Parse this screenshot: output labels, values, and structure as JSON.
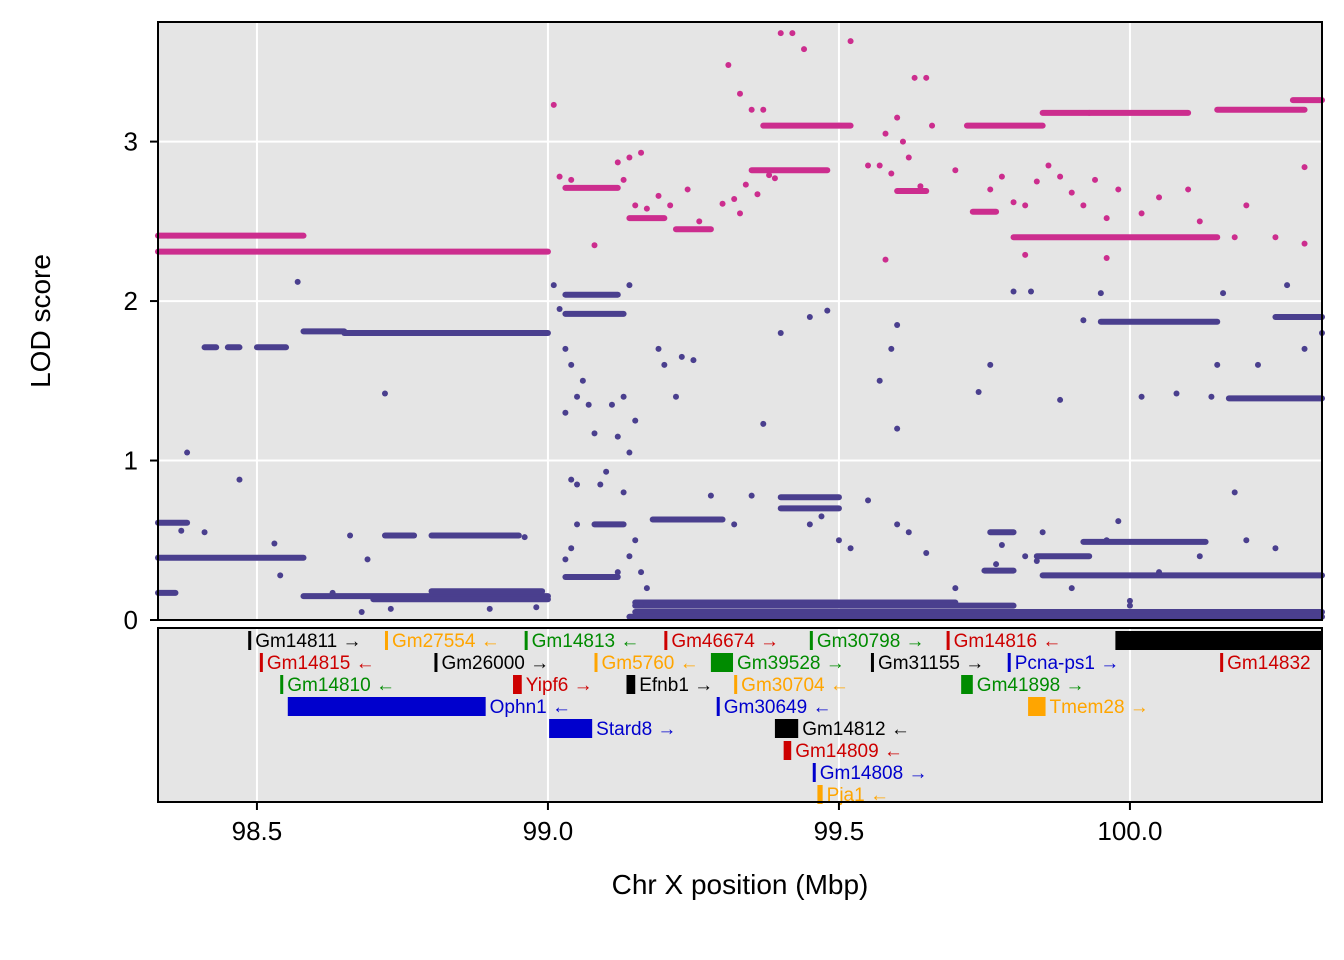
{
  "colors": {
    "panel_bg": "#E5E5E5",
    "grid": "#FFFFFF",
    "series_a": "#CC2D8E",
    "series_b": "#4A3F8E",
    "gene_black": "#000000",
    "gene_orange": "#FFA500",
    "gene_green": "#008B00",
    "gene_red": "#CD0000",
    "gene_blue": "#0000CD"
  },
  "chart_data": {
    "type": "scatter",
    "xlabel": "Chr X position (Mbp)",
    "ylabel": "LOD score",
    "xlim": [
      98.33,
      100.33
    ],
    "ylim": [
      0,
      3.75
    ],
    "x_ticks": [
      98.5,
      99.0,
      99.5,
      100.0
    ],
    "x_tick_labels": [
      "98.5",
      "99.0",
      "99.5",
      "100.0"
    ],
    "y_ticks": [
      0,
      1,
      2,
      3
    ],
    "y_tick_labels": [
      "0",
      "1",
      "2",
      "3"
    ],
    "grid": true,
    "series": [
      {
        "color": "#CC2D8E",
        "segments": [
          {
            "x0": 98.33,
            "x1": 98.58,
            "y": 2.41
          },
          {
            "x0": 98.33,
            "x1": 99.0,
            "y": 2.31
          },
          {
            "x0": 99.03,
            "x1": 99.12,
            "y": 2.71
          },
          {
            "x0": 99.14,
            "x1": 99.2,
            "y": 2.52
          },
          {
            "x0": 99.22,
            "x1": 99.28,
            "y": 2.45
          },
          {
            "x0": 99.35,
            "x1": 99.48,
            "y": 2.82
          },
          {
            "x0": 99.37,
            "x1": 99.52,
            "y": 3.1
          },
          {
            "x0": 99.6,
            "x1": 99.65,
            "y": 2.69
          },
          {
            "x0": 99.72,
            "x1": 99.85,
            "y": 3.1
          },
          {
            "x0": 99.85,
            "x1": 99.93,
            "y": 3.18
          },
          {
            "x0": 99.93,
            "x1": 100.1,
            "y": 3.18
          },
          {
            "x0": 100.15,
            "x1": 100.3,
            "y": 3.2
          },
          {
            "x0": 100.28,
            "x1": 100.33,
            "y": 3.26
          },
          {
            "x0": 99.8,
            "x1": 100.15,
            "y": 2.4
          },
          {
            "x0": 99.73,
            "x1": 99.77,
            "y": 2.56
          }
        ],
        "points": [
          [
            99.01,
            3.23
          ],
          [
            99.02,
            2.78
          ],
          [
            99.04,
            2.76
          ],
          [
            99.08,
            2.35
          ],
          [
            99.12,
            2.87
          ],
          [
            99.14,
            2.9
          ],
          [
            99.16,
            2.93
          ],
          [
            99.13,
            2.76
          ],
          [
            99.15,
            2.6
          ],
          [
            99.17,
            2.58
          ],
          [
            99.19,
            2.66
          ],
          [
            99.21,
            2.6
          ],
          [
            99.24,
            2.7
          ],
          [
            99.26,
            2.5
          ],
          [
            99.3,
            2.61
          ],
          [
            99.33,
            2.55
          ],
          [
            99.34,
            2.73
          ],
          [
            99.32,
            2.64
          ],
          [
            99.36,
            2.67
          ],
          [
            99.38,
            2.79
          ],
          [
            99.39,
            2.77
          ],
          [
            99.31,
            3.48
          ],
          [
            99.33,
            3.3
          ],
          [
            99.35,
            3.2
          ],
          [
            99.37,
            3.2
          ],
          [
            99.4,
            3.68
          ],
          [
            99.42,
            3.68
          ],
          [
            99.44,
            3.58
          ],
          [
            99.52,
            3.63
          ],
          [
            99.5,
            3.1
          ],
          [
            99.55,
            2.85
          ],
          [
            99.57,
            2.85
          ],
          [
            99.58,
            3.05
          ],
          [
            99.6,
            3.15
          ],
          [
            99.61,
            3.0
          ],
          [
            99.62,
            2.9
          ],
          [
            99.63,
            3.4
          ],
          [
            99.65,
            3.4
          ],
          [
            99.59,
            2.8
          ],
          [
            99.58,
            2.26
          ],
          [
            99.64,
            2.72
          ],
          [
            99.66,
            3.1
          ],
          [
            99.7,
            2.82
          ],
          [
            99.76,
            2.7
          ],
          [
            99.78,
            2.78
          ],
          [
            99.8,
            2.62
          ],
          [
            99.82,
            2.6
          ],
          [
            99.84,
            2.75
          ],
          [
            99.86,
            2.85
          ],
          [
            99.88,
            2.78
          ],
          [
            99.9,
            2.68
          ],
          [
            99.92,
            2.6
          ],
          [
            99.94,
            2.76
          ],
          [
            99.96,
            2.52
          ],
          [
            99.98,
            2.7
          ],
          [
            100.02,
            2.55
          ],
          [
            100.05,
            2.65
          ],
          [
            100.1,
            2.7
          ],
          [
            100.12,
            2.5
          ],
          [
            100.18,
            2.4
          ],
          [
            100.2,
            2.6
          ],
          [
            100.25,
            2.4
          ],
          [
            100.3,
            2.36
          ],
          [
            100.3,
            2.84
          ],
          [
            99.82,
            2.29
          ],
          [
            99.96,
            2.27
          ]
        ]
      },
      {
        "color": "#4A3F8E",
        "segments": [
          {
            "x0": 98.33,
            "x1": 98.38,
            "y": 0.61
          },
          {
            "x0": 98.33,
            "x1": 98.58,
            "y": 0.39
          },
          {
            "x0": 98.33,
            "x1": 98.36,
            "y": 0.17
          },
          {
            "x0": 98.58,
            "x1": 98.65,
            "y": 1.81
          },
          {
            "x0": 98.65,
            "x1": 99.0,
            "y": 1.8
          },
          {
            "x0": 98.41,
            "x1": 98.43,
            "y": 1.71
          },
          {
            "x0": 98.45,
            "x1": 98.47,
            "y": 1.71
          },
          {
            "x0": 98.5,
            "x1": 98.55,
            "y": 1.71
          },
          {
            "x0": 98.72,
            "x1": 98.77,
            "y": 0.53
          },
          {
            "x0": 98.8,
            "x1": 98.95,
            "y": 0.53
          },
          {
            "x0": 98.58,
            "x1": 99.0,
            "y": 0.15
          },
          {
            "x0": 98.7,
            "x1": 99.0,
            "y": 0.13
          },
          {
            "x0": 98.8,
            "x1": 98.99,
            "y": 0.18
          },
          {
            "x0": 99.03,
            "x1": 99.12,
            "y": 2.04
          },
          {
            "x0": 99.03,
            "x1": 99.13,
            "y": 1.92
          },
          {
            "x0": 99.03,
            "x1": 99.12,
            "y": 0.27
          },
          {
            "x0": 99.08,
            "x1": 99.13,
            "y": 0.6
          },
          {
            "x0": 99.18,
            "x1": 99.3,
            "y": 0.63
          },
          {
            "x0": 99.15,
            "x1": 99.7,
            "y": 0.11
          },
          {
            "x0": 99.15,
            "x1": 99.8,
            "y": 0.09
          },
          {
            "x0": 99.15,
            "x1": 100.33,
            "y": 0.05
          },
          {
            "x0": 99.14,
            "x1": 100.33,
            "y": 0.02
          },
          {
            "x0": 99.85,
            "x1": 100.33,
            "y": 0.28
          },
          {
            "x0": 99.92,
            "x1": 100.13,
            "y": 0.49
          },
          {
            "x0": 99.84,
            "x1": 99.93,
            "y": 0.4
          },
          {
            "x0": 99.95,
            "x1": 100.15,
            "y": 1.87
          },
          {
            "x0": 100.17,
            "x1": 100.33,
            "y": 1.39
          },
          {
            "x0": 100.25,
            "x1": 100.33,
            "y": 1.9
          },
          {
            "x0": 99.4,
            "x1": 99.5,
            "y": 0.77
          },
          {
            "x0": 99.4,
            "x1": 99.5,
            "y": 0.7
          },
          {
            "x0": 99.75,
            "x1": 99.8,
            "y": 0.31
          },
          {
            "x0": 99.76,
            "x1": 99.8,
            "y": 0.55
          }
        ],
        "points": [
          [
            98.38,
            1.05
          ],
          [
            98.37,
            0.56
          ],
          [
            98.41,
            0.55
          ],
          [
            98.47,
            0.88
          ],
          [
            98.53,
            0.48
          ],
          [
            98.57,
            2.12
          ],
          [
            98.54,
            0.28
          ],
          [
            98.63,
            0.17
          ],
          [
            98.66,
            0.53
          ],
          [
            98.69,
            0.38
          ],
          [
            98.72,
            1.42
          ],
          [
            98.68,
            0.05
          ],
          [
            98.73,
            0.07
          ],
          [
            98.9,
            0.07
          ],
          [
            98.96,
            0.52
          ],
          [
            98.98,
            0.08
          ],
          [
            99.01,
            2.1
          ],
          [
            99.02,
            1.95
          ],
          [
            99.03,
            1.7
          ],
          [
            99.04,
            1.6
          ],
          [
            99.05,
            1.4
          ],
          [
            99.03,
            1.3
          ],
          [
            99.04,
            0.88
          ],
          [
            99.05,
            0.6
          ],
          [
            99.04,
            0.45
          ],
          [
            99.03,
            0.38
          ],
          [
            99.05,
            0.85
          ],
          [
            99.06,
            1.5
          ],
          [
            99.07,
            1.35
          ],
          [
            99.08,
            1.17
          ],
          [
            99.09,
            0.85
          ],
          [
            99.1,
            0.93
          ],
          [
            99.11,
            1.35
          ],
          [
            99.12,
            1.15
          ],
          [
            99.13,
            0.8
          ],
          [
            99.14,
            2.1
          ],
          [
            99.12,
            0.3
          ],
          [
            99.13,
            1.4
          ],
          [
            99.14,
            0.4
          ],
          [
            99.15,
            0.5
          ],
          [
            99.16,
            0.3
          ],
          [
            99.17,
            0.2
          ],
          [
            99.14,
            1.05
          ],
          [
            99.15,
            1.25
          ],
          [
            99.16,
            0.1
          ],
          [
            99.19,
            1.7
          ],
          [
            99.2,
            1.6
          ],
          [
            99.22,
            1.4
          ],
          [
            99.23,
            1.65
          ],
          [
            99.25,
            1.63
          ],
          [
            99.28,
            0.78
          ],
          [
            99.32,
            0.6
          ],
          [
            99.35,
            0.78
          ],
          [
            99.37,
            1.23
          ],
          [
            99.4,
            1.8
          ],
          [
            99.45,
            1.9
          ],
          [
            99.48,
            1.94
          ],
          [
            99.45,
            0.6
          ],
          [
            99.47,
            0.65
          ],
          [
            99.5,
            0.5
          ],
          [
            99.52,
            0.45
          ],
          [
            99.55,
            0.75
          ],
          [
            99.57,
            1.5
          ],
          [
            99.59,
            1.7
          ],
          [
            99.6,
            1.85
          ],
          [
            99.6,
            1.2
          ],
          [
            99.6,
            0.6
          ],
          [
            99.62,
            0.55
          ],
          [
            99.65,
            0.42
          ],
          [
            99.7,
            0.2
          ],
          [
            99.74,
            1.43
          ],
          [
            99.76,
            1.6
          ],
          [
            99.77,
            0.35
          ],
          [
            99.78,
            0.47
          ],
          [
            99.8,
            2.06
          ],
          [
            99.82,
            0.4
          ],
          [
            99.83,
            2.06
          ],
          [
            99.84,
            0.37
          ],
          [
            99.85,
            0.55
          ],
          [
            99.88,
            1.38
          ],
          [
            99.9,
            0.2
          ],
          [
            99.92,
            1.88
          ],
          [
            99.95,
            2.05
          ],
          [
            99.96,
            0.5
          ],
          [
            99.98,
            0.62
          ],
          [
            100.0,
            0.12
          ],
          [
            100.02,
            1.4
          ],
          [
            100.05,
            0.3
          ],
          [
            100.08,
            1.42
          ],
          [
            100.12,
            0.4
          ],
          [
            100.14,
            1.4
          ],
          [
            100.15,
            1.6
          ],
          [
            100.16,
            2.05
          ],
          [
            100.18,
            0.8
          ],
          [
            100.2,
            0.5
          ],
          [
            100.22,
            1.6
          ],
          [
            100.25,
            0.45
          ],
          [
            100.27,
            2.1
          ],
          [
            100.3,
            1.7
          ],
          [
            100.33,
            1.8
          ],
          [
            100.0,
            0.09
          ]
        ]
      }
    ],
    "genes": [
      {
        "name": "Gm14811",
        "start": 98.485,
        "end": 98.487,
        "row": 0,
        "strand": "→",
        "color": "#000000"
      },
      {
        "name": "Gm27554",
        "start": 98.72,
        "end": 98.722,
        "row": 0,
        "strand": "←",
        "color": "#FFA500"
      },
      {
        "name": "Gm14813",
        "start": 98.96,
        "end": 98.962,
        "row": 0,
        "strand": "←",
        "color": "#008B00"
      },
      {
        "name": "Gm46674",
        "start": 99.2,
        "end": 99.205,
        "row": 0,
        "strand": "→",
        "color": "#CD0000"
      },
      {
        "name": "Gm30798",
        "start": 99.45,
        "end": 99.452,
        "row": 0,
        "strand": "→",
        "color": "#008B00"
      },
      {
        "name": "Gm14816",
        "start": 99.685,
        "end": 99.687,
        "row": 0,
        "strand": "←",
        "color": "#CD0000"
      },
      {
        "name": "",
        "start": 99.975,
        "end": 100.33,
        "row": 0,
        "strand": "",
        "color": "#000000"
      },
      {
        "name": "Gm14815",
        "start": 98.505,
        "end": 98.507,
        "row": 1,
        "strand": "←",
        "color": "#CD0000"
      },
      {
        "name": "Gm26000",
        "start": 98.805,
        "end": 98.807,
        "row": 1,
        "strand": "→",
        "color": "#000000"
      },
      {
        "name": "Gm5760",
        "start": 99.08,
        "end": 99.082,
        "row": 1,
        "strand": "←",
        "color": "#FFA500"
      },
      {
        "name": "Gm39528",
        "start": 99.28,
        "end": 99.318,
        "row": 1,
        "strand": "→",
        "color": "#008B00"
      },
      {
        "name": "Gm31155",
        "start": 99.555,
        "end": 99.56,
        "row": 1,
        "strand": "→",
        "color": "#000000"
      },
      {
        "name": "Pcna-ps1",
        "start": 99.79,
        "end": 99.792,
        "row": 1,
        "strand": "→",
        "color": "#0000CD"
      },
      {
        "name": "Gm14832",
        "start": 100.155,
        "end": 100.157,
        "row": 1,
        "strand": "",
        "color": "#CD0000"
      },
      {
        "name": "Gm14810",
        "start": 98.54,
        "end": 98.542,
        "row": 2,
        "strand": "←",
        "color": "#008B00"
      },
      {
        "name": "Yipf6",
        "start": 98.94,
        "end": 98.955,
        "row": 2,
        "strand": "→",
        "color": "#CD0000"
      },
      {
        "name": "Efnb1",
        "start": 99.135,
        "end": 99.15,
        "row": 2,
        "strand": "→",
        "color": "#000000"
      },
      {
        "name": "Gm30704",
        "start": 99.32,
        "end": 99.323,
        "row": 2,
        "strand": "←",
        "color": "#FFA500"
      },
      {
        "name": "Gm41898",
        "start": 99.71,
        "end": 99.73,
        "row": 2,
        "strand": "→",
        "color": "#008B00"
      },
      {
        "name": "Ophn1",
        "start": 98.553,
        "end": 98.893,
        "row": 3,
        "strand": "←",
        "color": "#0000CD"
      },
      {
        "name": "Gm30649",
        "start": 99.29,
        "end": 99.292,
        "row": 3,
        "strand": "←",
        "color": "#0000CD"
      },
      {
        "name": "Tmem28",
        "start": 99.825,
        "end": 99.855,
        "row": 3,
        "strand": "→",
        "color": "#FFA500"
      },
      {
        "name": "Stard8",
        "start": 99.002,
        "end": 99.076,
        "row": 4,
        "strand": "→",
        "color": "#0000CD"
      },
      {
        "name": "Gm14812",
        "start": 99.39,
        "end": 99.43,
        "row": 4,
        "strand": "←",
        "color": "#000000"
      },
      {
        "name": "Gm14809",
        "start": 99.405,
        "end": 99.418,
        "row": 5,
        "strand": "←",
        "color": "#CD0000"
      },
      {
        "name": "Gm14808",
        "start": 99.455,
        "end": 99.457,
        "row": 6,
        "strand": "→",
        "color": "#0000CD"
      },
      {
        "name": "Pja1",
        "start": 99.463,
        "end": 99.472,
        "row": 7,
        "strand": "←",
        "color": "#FFA500"
      }
    ]
  }
}
